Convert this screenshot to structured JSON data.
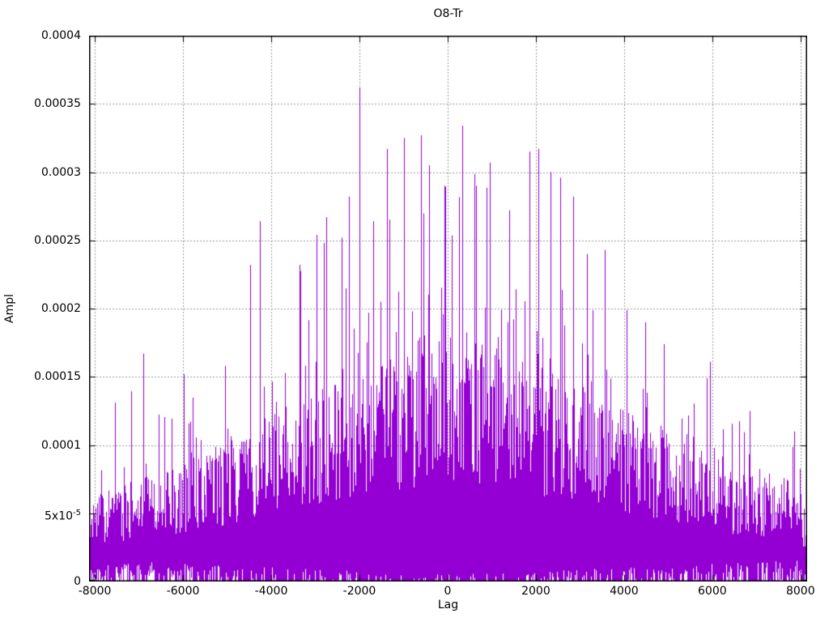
{
  "chart_data": {
    "type": "impulse",
    "title": "O8-Tr",
    "xlabel": "Lag",
    "ylabel": "Ampl",
    "xlim": [
      -8130,
      8150
    ],
    "ylim": [
      0,
      0.0004
    ],
    "x_tick_values": [
      -8000,
      -6000,
      -4000,
      -2000,
      0,
      2000,
      4000,
      6000,
      8000
    ],
    "x_tick_labels": [
      "-8000",
      "-6000",
      "-4000",
      "-2000",
      "0",
      "2000",
      "4000",
      "6000",
      "8000"
    ],
    "y_tick_values": [
      0,
      5e-05,
      0.0001,
      0.00015,
      0.0002,
      0.00025,
      0.0003,
      0.00035,
      0.0004
    ],
    "y_tick_labels": [
      "0",
      "5x10^-5",
      "0.0001",
      "0.00015",
      "0.0002",
      "0.00025",
      "0.0003",
      "0.00035",
      "0.0004"
    ],
    "grid": "dotted, at every major tick, drawn behind data",
    "legend": "none",
    "series_color": "#9400d3",
    "grid_color": "#9b9b9b",
    "axis_color": "#000000",
    "background_color": "#ffffff",
    "envelope": {
      "comment": "dense noisy impulse plot ~16000 points; envelopes sampled by lag",
      "lags": [
        -8150,
        -7500,
        -7000,
        -6500,
        -6000,
        -5500,
        -5000,
        -4500,
        -4000,
        -3500,
        -3000,
        -2500,
        -2000,
        -1500,
        -1000,
        -500,
        0,
        500,
        1000,
        1500,
        2000,
        2500,
        3000,
        3500,
        4000,
        4500,
        5000,
        5500,
        6000,
        6500,
        7000,
        7500,
        8150
      ],
      "max": [
        0.0001,
        0.000118,
        0.00016,
        0.000148,
        0.00015,
        0.000148,
        0.000155,
        0.000195,
        0.000225,
        0.000222,
        0.000245,
        0.000255,
        0.000285,
        0.000265,
        0.00031,
        0.000315,
        0.000295,
        0.00032,
        0.0003,
        0.000285,
        0.000308,
        0.000295,
        0.000275,
        0.000238,
        0.0002,
        0.000185,
        0.00017,
        0.000152,
        0.000148,
        0.000132,
        0.000118,
        0.000106,
        9.8e-05
      ],
      "typical": [
        4.8e-05,
        5.4e-05,
        5.8e-05,
        6.3e-05,
        6.8e-05,
        7.4e-05,
        8e-05,
        8.8e-05,
        9.6e-05,
        0.000101,
        0.000107,
        0.000113,
        0.000118,
        0.000124,
        0.00013,
        0.000135,
        0.000138,
        0.000137,
        0.000133,
        0.000128,
        0.000122,
        0.000117,
        0.000111,
        0.000105,
        9.8e-05,
        9.1e-05,
        8.4e-05,
        7.7e-05,
        7.1e-05,
        6.5e-05,
        5.9e-05,
        5.4e-05,
        4.8e-05
      ]
    },
    "notable_peaks": [
      [
        -7550,
        0.000131
      ],
      [
        -6900,
        0.000167
      ],
      [
        -5980,
        0.000152
      ],
      [
        -5050,
        0.000158
      ],
      [
        -4480,
        0.000232
      ],
      [
        -4250,
        0.000264
      ],
      [
        -3350,
        0.000232
      ],
      [
        -2980,
        0.000254
      ],
      [
        -2760,
        0.000267
      ],
      [
        -2400,
        0.000252
      ],
      [
        -2230,
        0.000282
      ],
      [
        -2000,
        0.000362
      ],
      [
        -1680,
        0.000264
      ],
      [
        -1380,
        0.000317
      ],
      [
        -990,
        0.000325
      ],
      [
        -600,
        0.000327
      ],
      [
        -420,
        0.000305
      ],
      [
        -80,
        0.00029
      ],
      [
        340,
        0.000334
      ],
      [
        640,
        0.00029
      ],
      [
        950,
        0.000307
      ],
      [
        1400,
        0.000272
      ],
      [
        1850,
        0.000315
      ],
      [
        2060,
        0.000317
      ],
      [
        2340,
        0.0003
      ],
      [
        2550,
        0.000296
      ],
      [
        2850,
        0.000282
      ],
      [
        3150,
        0.00024
      ],
      [
        3560,
        0.000243
      ],
      [
        4060,
        0.000199
      ],
      [
        4480,
        0.00019
      ],
      [
        4900,
        0.000174
      ],
      [
        5950,
        0.000161
      ],
      [
        6850,
        0.000125
      ],
      [
        7850,
        0.00011
      ]
    ],
    "max_peak": {
      "lag": -2000,
      "ampl": 0.000362
    },
    "noise_floor": {
      "bottom_gap_max_ampl": 1.4e-05,
      "description": "thin white gaps between impulses near zero line"
    }
  }
}
